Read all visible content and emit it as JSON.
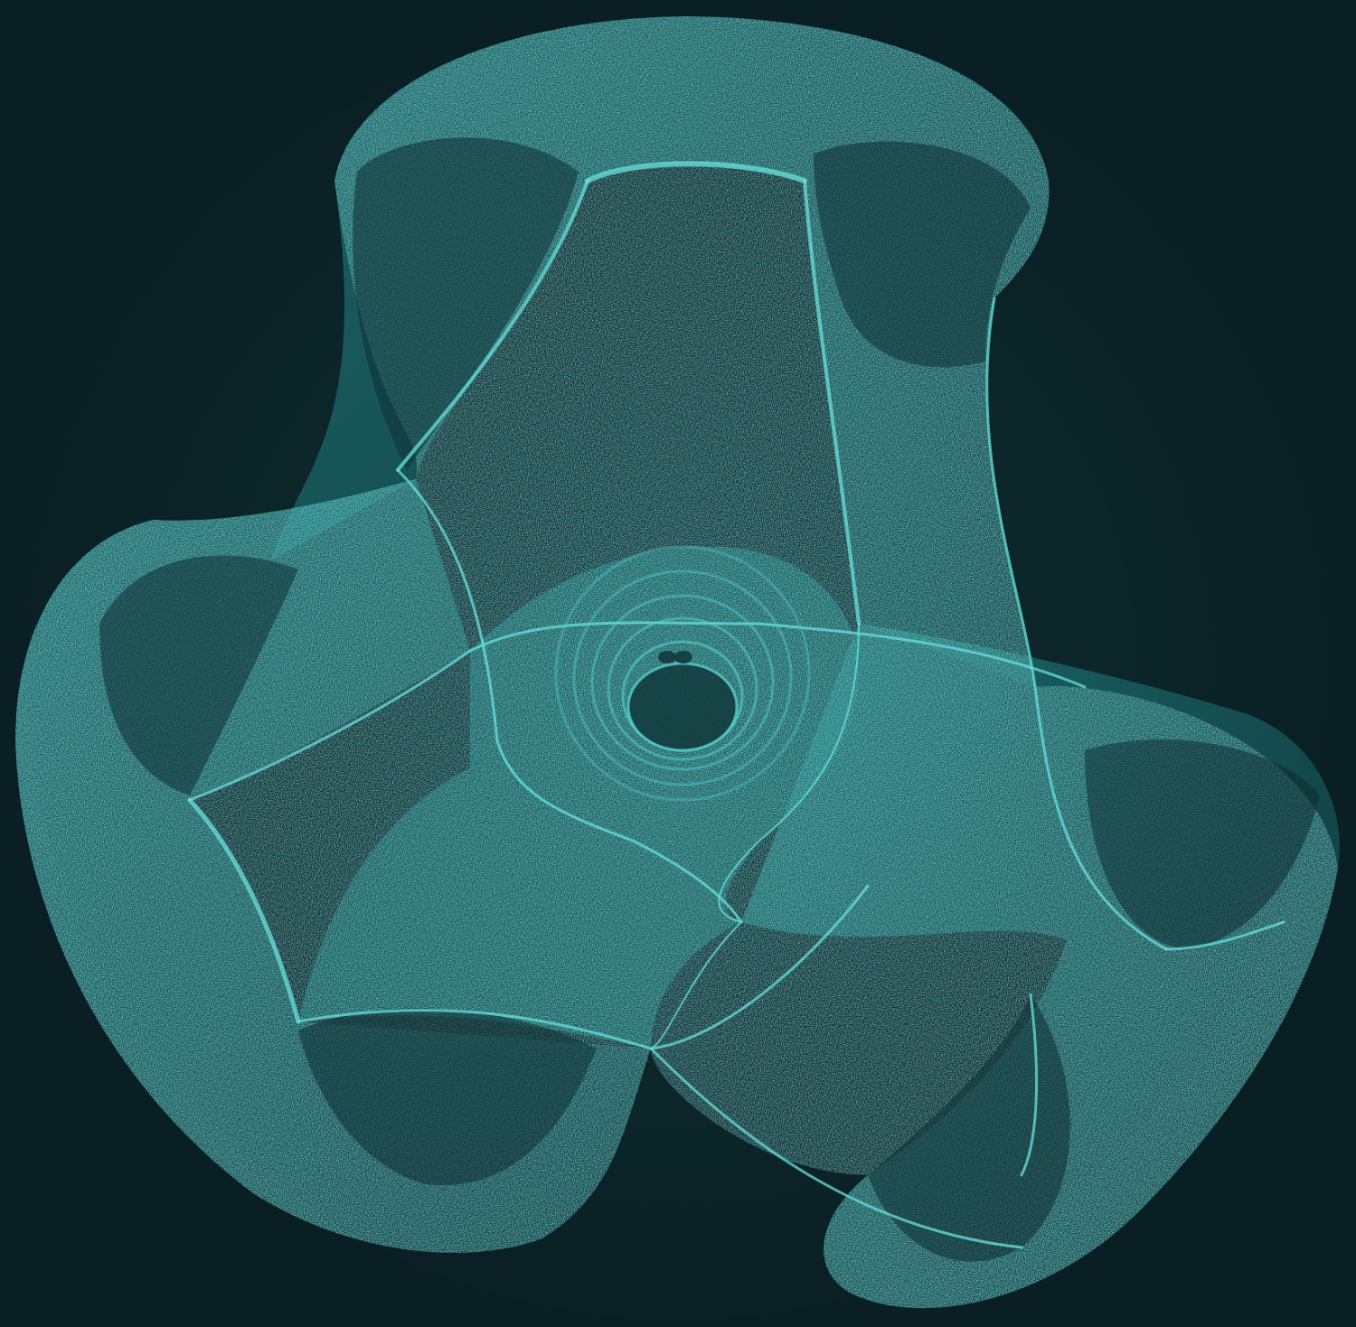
{
  "scene": {
    "subject": "triply-periodic-surface",
    "colors": {
      "background": "#0a1f23",
      "surface": "#2fb3b3",
      "surface_dark": "#114a4c",
      "highlight": "#7ff3ee",
      "edge": "#5fe6e2"
    }
  }
}
